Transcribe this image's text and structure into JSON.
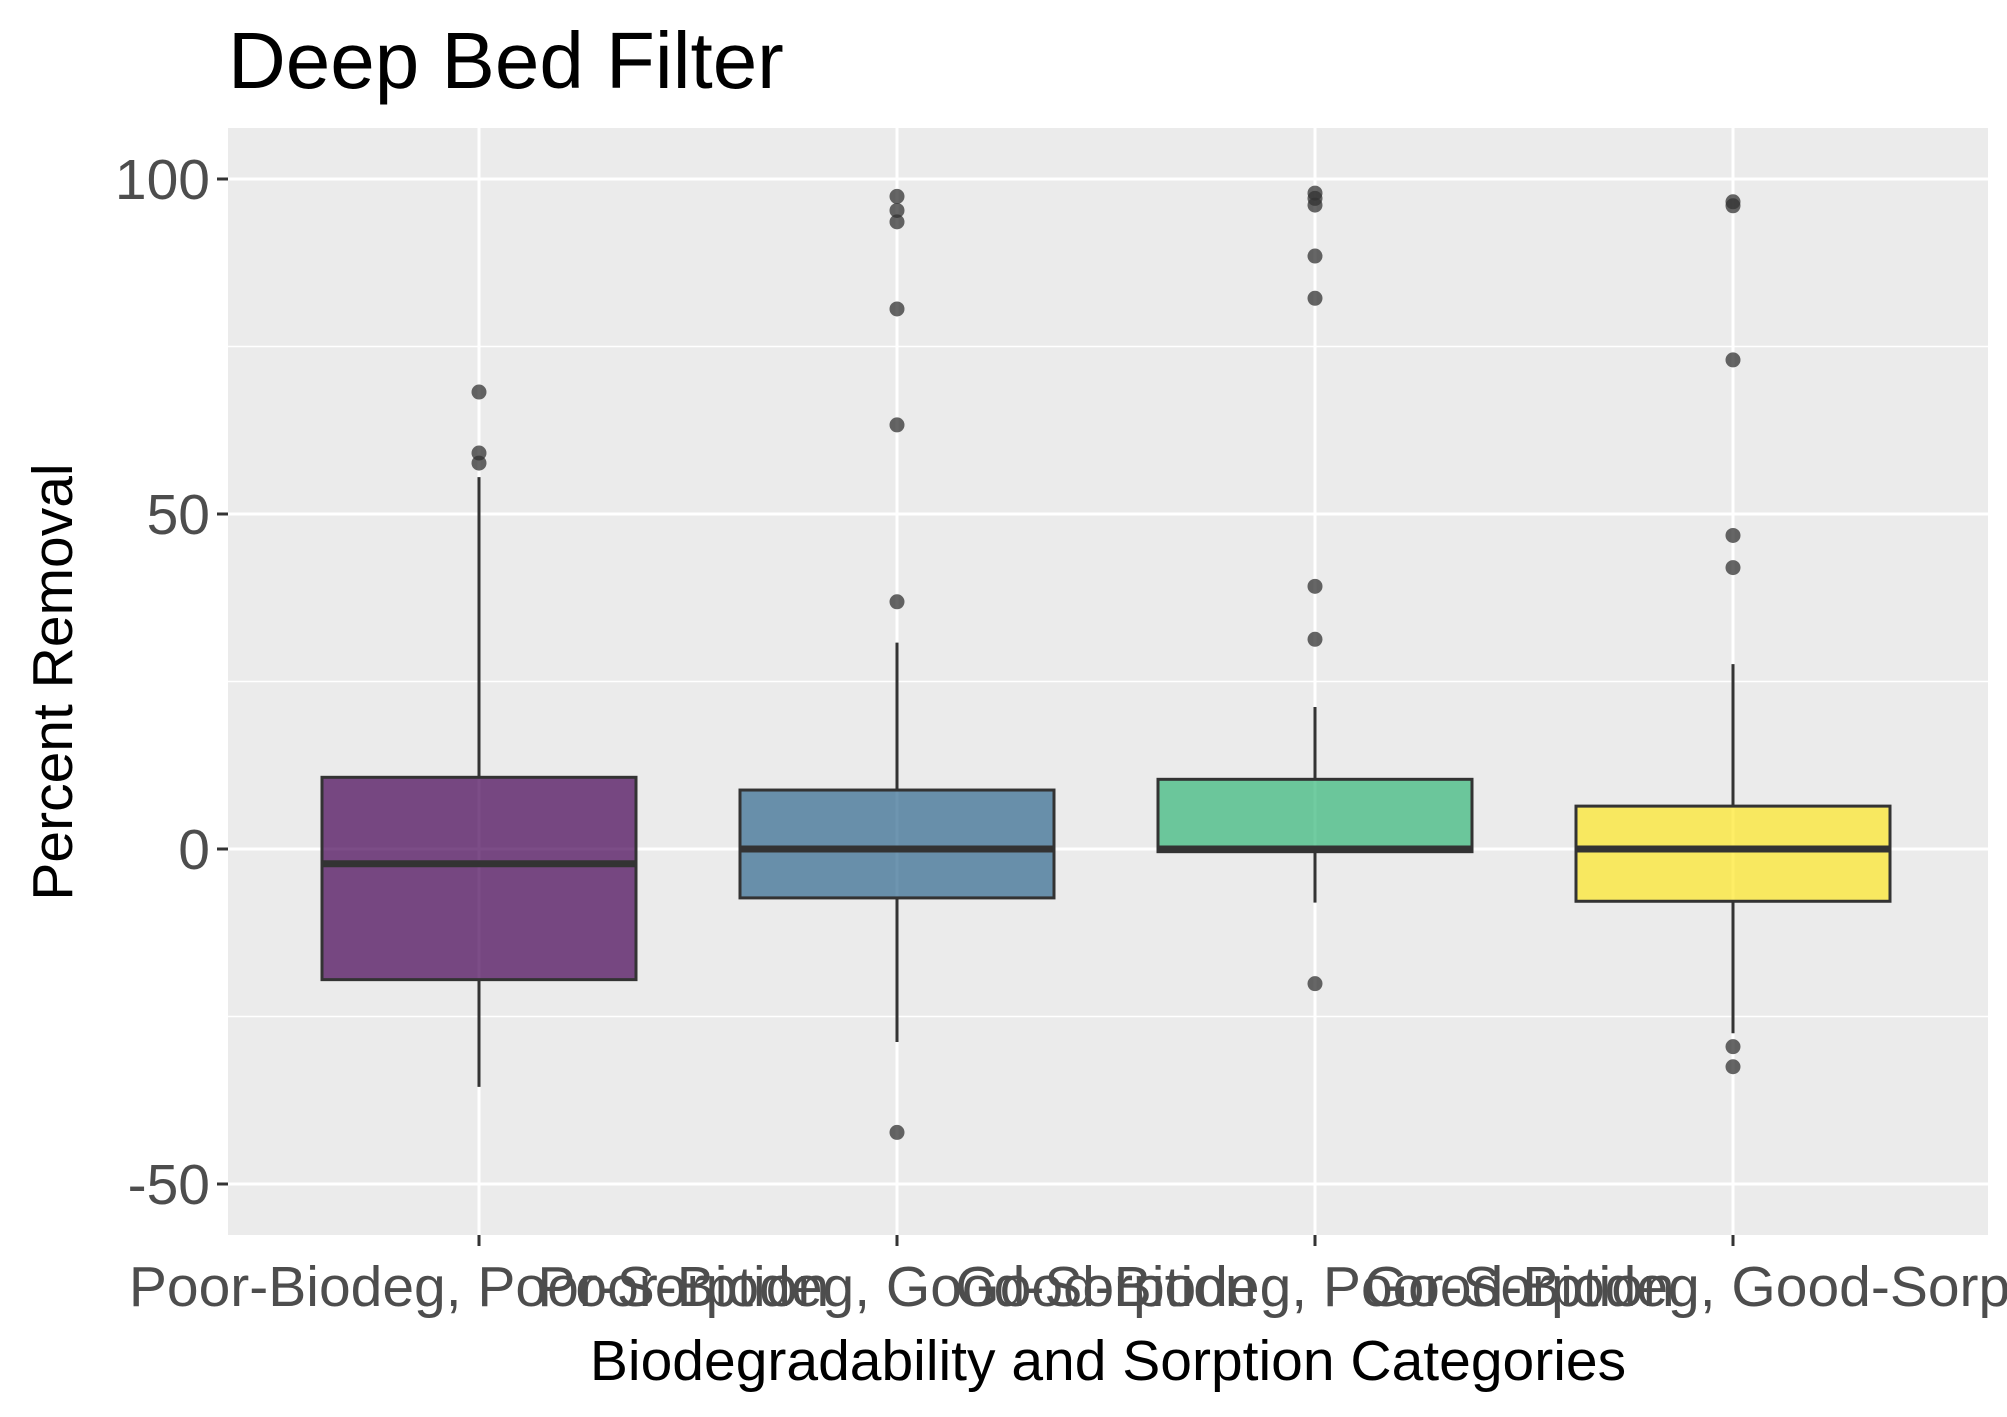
{
  "chart_data": {
    "type": "box",
    "title": "Deep Bed Filter",
    "xlabel": "Biodegradability and Sorption Categories",
    "ylabel": "Percent Removal",
    "ylim": [
      -57.5,
      107.5
    ],
    "yticks": [
      -50,
      0,
      50,
      100
    ],
    "ytick_labels": [
      "-50",
      "0",
      "50",
      "100"
    ],
    "grid": true,
    "legend": "none",
    "categories": [
      "Poor-Biodeg, Poor-Sorption",
      "Poor-Biodeg, Good-Sorption",
      "Good-Biodeg, Poor-Sorption",
      "Good-Biodeg, Good-Sorption"
    ],
    "boxes": [
      {
        "category": "Poor-Biodeg, Poor-Sorption",
        "whisker_low": -35.5,
        "q1": -19.5,
        "median": -2.2,
        "q3": 10.7,
        "whisker_high": 55.5,
        "color": "#440154",
        "outliers": [
          68.2,
          59.1,
          57.6
        ]
      },
      {
        "category": "Poor-Biodeg, Good-Sorption",
        "whisker_low": -28.8,
        "q1": -7.3,
        "median": 0,
        "q3": 8.8,
        "whisker_high": 30.8,
        "color": "#31688e",
        "outliers": [
          97.4,
          95.3,
          93.6,
          80.6,
          63.3,
          36.9,
          -42.3
        ]
      },
      {
        "category": "Good-Biodeg, Poor-Sorption",
        "whisker_low": -8.0,
        "q1": -0.4,
        "median": 0,
        "q3": 10.4,
        "whisker_high": 21.2,
        "color": "#35b779",
        "outliers": [
          97.9,
          97.1,
          96.1,
          88.5,
          82.2,
          39.2,
          31.3,
          -20.1
        ]
      },
      {
        "category": "Good-Biodeg, Good-Sorption",
        "whisker_low": -27.5,
        "q1": -7.8,
        "median": 0,
        "q3": 6.4,
        "whisker_high": 27.6,
        "color": "#fde725",
        "outliers": [
          96.6,
          96.0,
          73.0,
          46.8,
          42.0,
          -29.5,
          -32.5
        ]
      }
    ]
  }
}
